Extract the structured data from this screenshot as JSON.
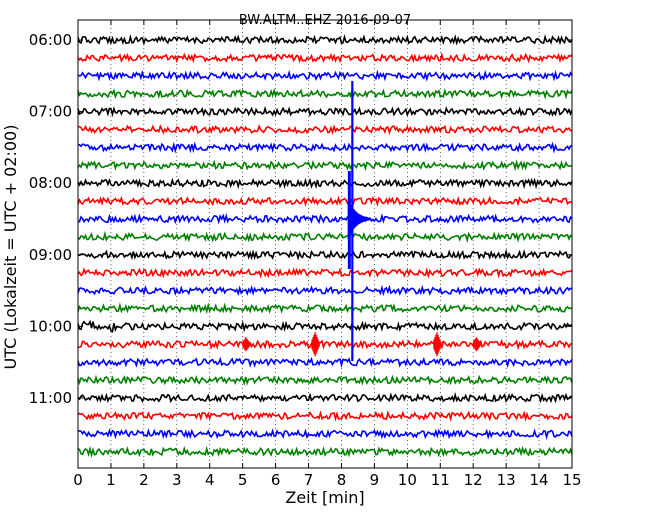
{
  "chart_data": {
    "type": "line",
    "title": "BW.ALTM..EHZ 2016-09-07",
    "xlabel": "Zeit  [min]",
    "ylabel": "UTC (Lokalzeit = UTC + 02:00)",
    "xlim": [
      0,
      15
    ],
    "x_ticks": [
      "0",
      "1",
      "2",
      "3",
      "4",
      "5",
      "6",
      "7",
      "8",
      "9",
      "10",
      "11",
      "12",
      "13",
      "14",
      "15"
    ],
    "y_ticks": [
      {
        "label": "06:00",
        "row": 0
      },
      {
        "label": "07:00",
        "row": 4
      },
      {
        "label": "08:00",
        "row": 8
      },
      {
        "label": "09:00",
        "row": 12
      },
      {
        "label": "10:00",
        "row": 16
      },
      {
        "label": "11:00",
        "row": 20
      }
    ],
    "grid": "vertical dotted at each minute",
    "trace_colors": [
      "#000000",
      "#ff0000",
      "#0000ff",
      "#008000"
    ],
    "row_interval_min": 15,
    "rows": 24,
    "start_time": "06:00",
    "events": [
      {
        "time": "08:30",
        "minute": 8.3,
        "type": "earthquake",
        "color": "#0000ff",
        "amplitude": "clipped"
      },
      {
        "time": "10:15",
        "minute": 5.1,
        "type": "spike",
        "color": "#ff0000",
        "amplitude": "small"
      },
      {
        "time": "10:15",
        "minute": 7.2,
        "type": "spike",
        "color": "#ff0000",
        "amplitude": "medium"
      },
      {
        "time": "10:15",
        "minute": 10.9,
        "type": "spike",
        "color": "#ff0000",
        "amplitude": "medium"
      },
      {
        "time": "10:15",
        "minute": 12.1,
        "type": "spike",
        "color": "#ff0000",
        "amplitude": "small"
      }
    ]
  }
}
